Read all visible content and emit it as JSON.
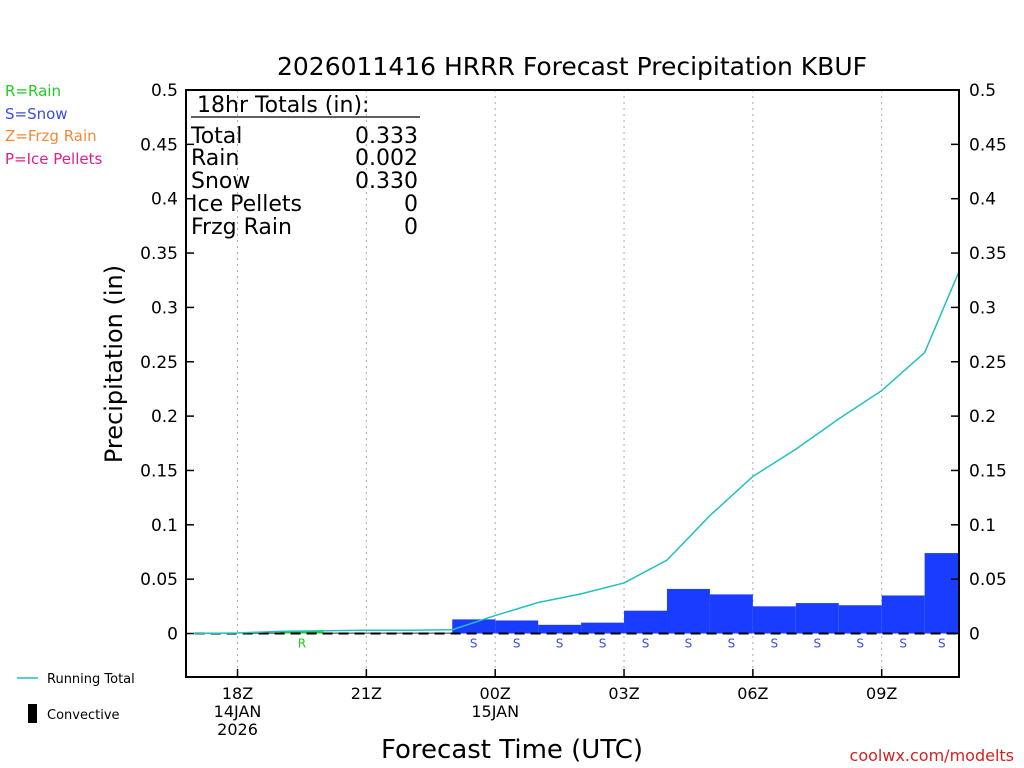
{
  "chart_data": {
    "type": "bar",
    "title": "2026011416 HRRR Forecast Precipitation KBUF",
    "xlabel": "Forecast Time (UTC)",
    "ylabel": "Precipitation (in)",
    "ylim": [
      -0.04,
      0.5
    ],
    "xlim": [
      16.8,
      34.8
    ],
    "y_ticks": [
      "0",
      "0.05",
      "0.1",
      "0.15",
      "0.2",
      "0.25",
      "0.3",
      "0.35",
      "0.4",
      "0.45",
      "0.5"
    ],
    "y_tick_values": [
      0,
      0.05,
      0.1,
      0.15,
      0.2,
      0.25,
      0.3,
      0.35,
      0.4,
      0.45,
      0.5
    ],
    "x_ticks": [
      {
        "hour": 18,
        "lines": [
          "18Z",
          "14JAN",
          "2026"
        ]
      },
      {
        "hour": 21,
        "lines": [
          "21Z"
        ]
      },
      {
        "hour": 24,
        "lines": [
          "00Z",
          "15JAN"
        ]
      },
      {
        "hour": 27,
        "lines": [
          "03Z"
        ]
      },
      {
        "hour": 30,
        "lines": [
          "06Z"
        ]
      },
      {
        "hour": 33,
        "lines": [
          "09Z"
        ]
      }
    ],
    "totals_box": {
      "heading": "18hr Totals (in):",
      "rows": [
        {
          "label": "Total",
          "value": "0.333"
        },
        {
          "label": "Rain",
          "value": "0.002"
        },
        {
          "label": "Snow",
          "value": "0.330"
        },
        {
          "label": "Ice Pellets",
          "value": "0"
        },
        {
          "label": "Frzg Rain",
          "value": "0"
        }
      ]
    },
    "bars": [
      {
        "start": 17,
        "end": 18,
        "value": 0.0005,
        "ptype": "",
        "color": "#000000"
      },
      {
        "start": 18,
        "end": 19,
        "value": 0.0005,
        "ptype": "",
        "color": "#000000"
      },
      {
        "start": 19,
        "end": 20,
        "value": 0.002,
        "ptype": "R",
        "color": "#22cc22"
      },
      {
        "start": 20,
        "end": 21,
        "value": 0.0005,
        "ptype": "",
        "color": "#000000"
      },
      {
        "start": 21,
        "end": 22,
        "value": 0.0005,
        "ptype": "",
        "color": "#000000"
      },
      {
        "start": 22,
        "end": 23,
        "value": 0.0005,
        "ptype": "",
        "color": "#000000"
      },
      {
        "start": 23,
        "end": 24,
        "value": 0.013,
        "ptype": "S",
        "color": "#1a3cff"
      },
      {
        "start": 24,
        "end": 25,
        "value": 0.012,
        "ptype": "S",
        "color": "#1a3cff"
      },
      {
        "start": 25,
        "end": 26,
        "value": 0.008,
        "ptype": "S",
        "color": "#1a3cff"
      },
      {
        "start": 26,
        "end": 27,
        "value": 0.01,
        "ptype": "S",
        "color": "#1a3cff"
      },
      {
        "start": 27,
        "end": 28,
        "value": 0.021,
        "ptype": "S",
        "color": "#1a3cff"
      },
      {
        "start": 28,
        "end": 29,
        "value": 0.041,
        "ptype": "S",
        "color": "#1a3cff"
      },
      {
        "start": 29,
        "end": 30,
        "value": 0.036,
        "ptype": "S",
        "color": "#1a3cff"
      },
      {
        "start": 30,
        "end": 31,
        "value": 0.025,
        "ptype": "S",
        "color": "#1a3cff"
      },
      {
        "start": 31,
        "end": 32,
        "value": 0.028,
        "ptype": "S",
        "color": "#1a3cff"
      },
      {
        "start": 32,
        "end": 33,
        "value": 0.026,
        "ptype": "S",
        "color": "#1a3cff"
      },
      {
        "start": 33,
        "end": 34,
        "value": 0.035,
        "ptype": "S",
        "color": "#1a3cff"
      },
      {
        "start": 34,
        "end": 35,
        "value": 0.074,
        "ptype": "S",
        "color": "#1a3cff"
      }
    ],
    "running_total": {
      "name": "Running Total",
      "color": "#22c0c0",
      "x": [
        17,
        18,
        19,
        20,
        21,
        22,
        23,
        24,
        25,
        26,
        27,
        28,
        29,
        30,
        31,
        32,
        33,
        34
      ],
      "y": [
        0,
        0.0005,
        0.002,
        0.0025,
        0.003,
        0.003,
        0.0035,
        0.0165,
        0.0285,
        0.0365,
        0.0465,
        0.0675,
        0.1085,
        0.1445,
        0.1695,
        0.1975,
        0.2235,
        0.2585
      ]
    },
    "running_total_end": {
      "x": 34.8,
      "y": 0.333
    },
    "ptype_legend": [
      {
        "text": "R=Rain",
        "color": "#22cc22"
      },
      {
        "text": "S=Snow",
        "color": "#3a4de0"
      },
      {
        "text": "Z=Frzg Rain",
        "color": "#f08a3a"
      },
      {
        "text": "P=Ice Pellets",
        "color": "#e0208a"
      }
    ],
    "legend_bottom": {
      "running_total_label": "Running Total",
      "convective_label": "Convective"
    },
    "credit": "coolwx.com/modelts"
  }
}
